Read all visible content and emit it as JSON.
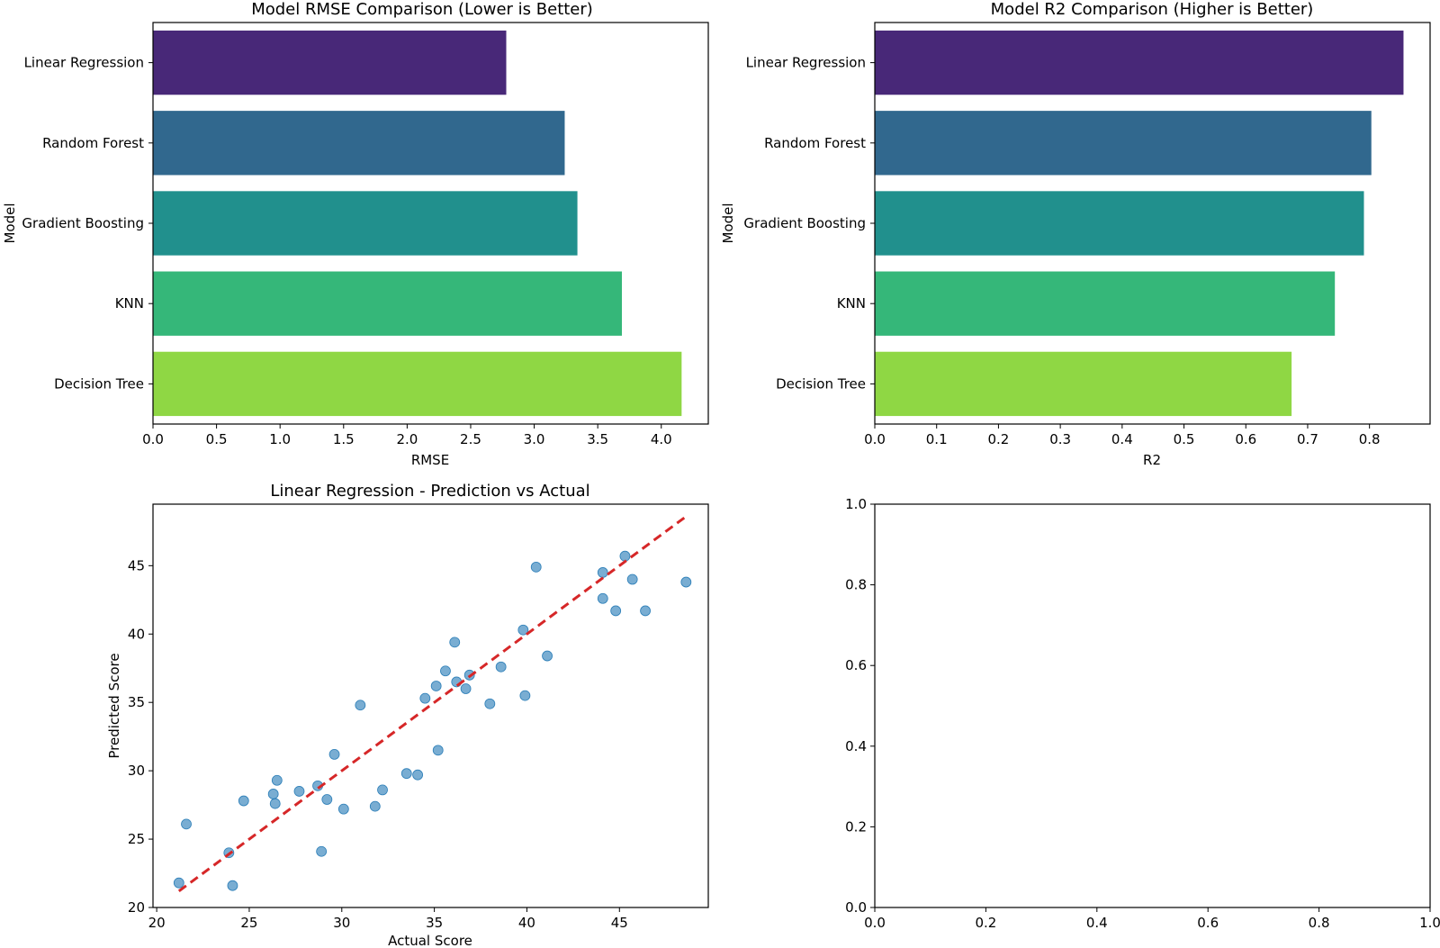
{
  "chart_data": [
    {
      "type": "bar",
      "orientation": "horizontal",
      "title": "Model RMSE Comparison (Lower is Better)",
      "xlabel": "RMSE",
      "ylabel": "Model",
      "categories": [
        "Linear Regression",
        "Random Forest",
        "Gradient Boosting",
        "KNN",
        "Decision Tree"
      ],
      "values": [
        2.78,
        3.24,
        3.34,
        3.69,
        4.16
      ],
      "colors": [
        "#482878",
        "#31688e",
        "#21908d",
        "#35b779",
        "#8fd744"
      ],
      "xlim": [
        0,
        4.37
      ],
      "xticks": [
        "0.0",
        "0.5",
        "1.0",
        "1.5",
        "2.0",
        "2.5",
        "3.0",
        "3.5",
        "4.0"
      ],
      "grid": false
    },
    {
      "type": "bar",
      "orientation": "horizontal",
      "title": "Model R2 Comparison (Higher is Better)",
      "xlabel": "R2",
      "ylabel": "Model",
      "categories": [
        "Linear Regression",
        "Random Forest",
        "Gradient Boosting",
        "KNN",
        "Decision Tree"
      ],
      "values": [
        0.855,
        0.803,
        0.791,
        0.744,
        0.674
      ],
      "colors": [
        "#482878",
        "#31688e",
        "#21908d",
        "#35b779",
        "#8fd744"
      ],
      "xlim": [
        0,
        0.898
      ],
      "xticks": [
        "0.0",
        "0.1",
        "0.2",
        "0.3",
        "0.4",
        "0.5",
        "0.6",
        "0.7",
        "0.8"
      ],
      "grid": false
    },
    {
      "type": "scatter",
      "title": "Linear Regression - Prediction vs Actual",
      "xlabel": "Actual Score",
      "ylabel": "Predicted Score",
      "xlim": [
        19.8,
        49.8
      ],
      "ylim": [
        20,
        49.5
      ],
      "xticks": [
        "20",
        "25",
        "30",
        "35",
        "40",
        "45"
      ],
      "yticks": [
        "20",
        "25",
        "30",
        "35",
        "40",
        "45"
      ],
      "point_color": "#1f77b4",
      "reference_line": {
        "from": [
          21.2,
          21.2
        ],
        "to": [
          48.6,
          48.6
        ],
        "color": "#d62728",
        "style": "dashed"
      },
      "points": [
        [
          21.2,
          21.8
        ],
        [
          21.6,
          26.1
        ],
        [
          23.9,
          24.0
        ],
        [
          24.1,
          21.6
        ],
        [
          24.7,
          27.8
        ],
        [
          26.3,
          28.3
        ],
        [
          26.4,
          27.6
        ],
        [
          26.5,
          29.3
        ],
        [
          27.7,
          28.5
        ],
        [
          28.7,
          28.9
        ],
        [
          28.9,
          24.1
        ],
        [
          29.2,
          27.9
        ],
        [
          29.6,
          31.2
        ],
        [
          30.1,
          27.2
        ],
        [
          31.0,
          34.8
        ],
        [
          31.8,
          27.4
        ],
        [
          32.2,
          28.6
        ],
        [
          33.5,
          29.8
        ],
        [
          34.1,
          29.7
        ],
        [
          34.5,
          35.3
        ],
        [
          35.1,
          36.2
        ],
        [
          35.2,
          31.5
        ],
        [
          35.6,
          37.3
        ],
        [
          36.1,
          39.4
        ],
        [
          36.2,
          36.5
        ],
        [
          36.7,
          36.0
        ],
        [
          36.9,
          37.0
        ],
        [
          38.0,
          34.9
        ],
        [
          38.6,
          37.6
        ],
        [
          39.8,
          40.3
        ],
        [
          39.9,
          35.5
        ],
        [
          40.5,
          44.9
        ],
        [
          41.1,
          38.4
        ],
        [
          44.1,
          44.5
        ],
        [
          44.1,
          42.6
        ],
        [
          44.8,
          41.7
        ],
        [
          45.3,
          45.7
        ],
        [
          45.7,
          44.0
        ],
        [
          46.4,
          41.7
        ],
        [
          48.6,
          43.8
        ]
      ]
    },
    {
      "type": "scatter",
      "title": "",
      "xlabel": "",
      "ylabel": "",
      "xlim": [
        0,
        1
      ],
      "ylim": [
        0,
        1
      ],
      "xticks": [
        "0.0",
        "0.2",
        "0.4",
        "0.6",
        "0.8",
        "1.0"
      ],
      "yticks": [
        "0.0",
        "0.2",
        "0.4",
        "0.6",
        "0.8",
        "1.0"
      ],
      "points": []
    }
  ]
}
